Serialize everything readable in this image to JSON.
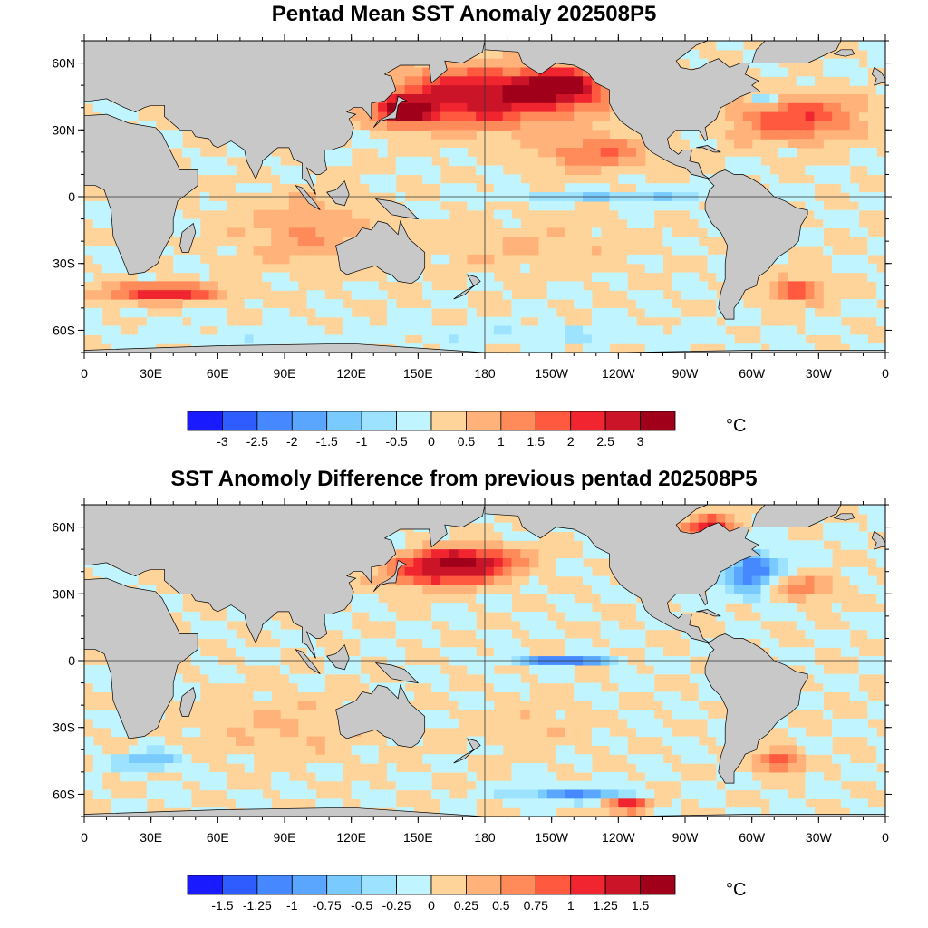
{
  "panels": [
    {
      "title": "Pentad Mean SST Anomaly 202508P5",
      "colorbar": {
        "colors": [
          "#1a1aff",
          "#2f5cff",
          "#4588ff",
          "#5aa6ff",
          "#78caff",
          "#9de2ff",
          "#c0f5ff",
          "#ffd49a",
          "#ffb37a",
          "#ff8a5a",
          "#ff5a40",
          "#f0252f",
          "#cc1428",
          "#a0001a"
        ],
        "labels": [
          "-3",
          "-2.5",
          "-2",
          "-1.5",
          "-1",
          "-0.5",
          "0",
          "0.5",
          "1",
          "1.5",
          "2",
          "2.5",
          "3"
        ],
        "unit": "°C"
      },
      "anomaly_blobs": [
        {
          "lon": 180,
          "lat": 45,
          "rlon": 45,
          "rlat": 13,
          "value": 3
        },
        {
          "lon": 145,
          "lat": 38,
          "rlon": 12,
          "rlat": 6,
          "value": 3
        },
        {
          "lon": 215,
          "lat": 50,
          "rlon": 18,
          "rlat": 8,
          "value": 2.5
        },
        {
          "lon": 320,
          "lat": 35,
          "rlon": 30,
          "rlat": 10,
          "value": 2
        },
        {
          "lon": 230,
          "lat": 20,
          "rlon": 25,
          "rlat": 8,
          "value": 1.5
        },
        {
          "lon": 35,
          "lat": -43,
          "rlon": 25,
          "rlat": 4,
          "value": 2.5
        },
        {
          "lon": 100,
          "lat": -15,
          "rlon": 30,
          "rlat": 15,
          "value": 1
        },
        {
          "lon": 200,
          "lat": -22,
          "rlon": 45,
          "rlat": 12,
          "value": 0.5
        },
        {
          "lon": 320,
          "lat": -42,
          "rlon": 12,
          "rlat": 5,
          "value": 2
        },
        {
          "lon": 240,
          "lat": 0,
          "rlon": 50,
          "rlat": 2.5,
          "value": -1
        },
        {
          "lon": 210,
          "lat": -62,
          "rlon": 60,
          "rlat": 4,
          "value": -0.5
        },
        {
          "lon": 80,
          "lat": -62,
          "rlon": 60,
          "rlat": 4,
          "value": -0.3
        },
        {
          "lon": 305,
          "lat": 43,
          "rlon": 6,
          "rlat": 3,
          "value": -1.5
        }
      ]
    },
    {
      "title": "SST Anomoly Difference from previous pentad 202508P5",
      "colorbar": {
        "colors": [
          "#1a1aff",
          "#2f5cff",
          "#4588ff",
          "#5aa6ff",
          "#78caff",
          "#9de2ff",
          "#c0f5ff",
          "#ffd49a",
          "#ffb37a",
          "#ff8a5a",
          "#ff5a40",
          "#f0252f",
          "#cc1428",
          "#a0001a"
        ],
        "labels": [
          "-1.5",
          "-1.25",
          "-1",
          "-0.75",
          "-0.5",
          "-0.25",
          "0",
          "0.25",
          "0.5",
          "0.75",
          "1",
          "1.25",
          "1.5"
        ],
        "unit": "°C"
      },
      "anomaly_blobs": [
        {
          "lon": 170,
          "lat": 45,
          "rlon": 25,
          "rlat": 6,
          "value": 1.5
        },
        {
          "lon": 160,
          "lat": 38,
          "rlon": 25,
          "rlat": 6,
          "value": 1
        },
        {
          "lon": 300,
          "lat": 40,
          "rlon": 12,
          "rlat": 10,
          "value": -1.25
        },
        {
          "lon": 322,
          "lat": 33,
          "rlon": 15,
          "rlat": 5,
          "value": 0.75
        },
        {
          "lon": 215,
          "lat": 0,
          "rlon": 20,
          "rlat": 2,
          "value": -1.25
        },
        {
          "lon": 200,
          "lat": -30,
          "rlon": 25,
          "rlat": 10,
          "value": 0.25
        },
        {
          "lon": 90,
          "lat": -30,
          "rlon": 40,
          "rlat": 15,
          "value": 0.25
        },
        {
          "lon": 220,
          "lat": -60,
          "rlon": 25,
          "rlat": 3,
          "value": -1
        },
        {
          "lon": 245,
          "lat": -65,
          "rlon": 10,
          "rlat": 3,
          "value": 1.25
        },
        {
          "lon": 312,
          "lat": -45,
          "rlon": 10,
          "rlat": 5,
          "value": 1
        },
        {
          "lon": 30,
          "lat": -45,
          "rlon": 15,
          "rlat": 4,
          "value": -0.75
        },
        {
          "lon": 280,
          "lat": 60,
          "rlon": 12,
          "rlat": 5,
          "value": 1.25
        }
      ]
    }
  ],
  "axes": {
    "lon_ticks": [
      "0",
      "30E",
      "60E",
      "90E",
      "120E",
      "150E",
      "180",
      "150W",
      "120W",
      "90W",
      "60W",
      "30W",
      "0"
    ],
    "lat_ticks": [
      "60N",
      "30N",
      "0",
      "30S",
      "60S"
    ],
    "lon_range": [
      0,
      360
    ],
    "lat_range": [
      -70,
      70
    ]
  },
  "colors": {
    "land": "#c8c8c8",
    "coast": "#000000",
    "ocean_base": "#ffd49a"
  }
}
